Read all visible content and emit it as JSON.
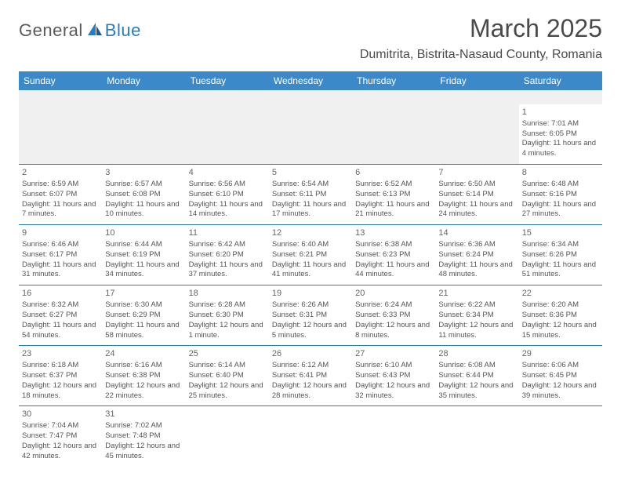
{
  "logo": {
    "part1": "General",
    "part2": "Blue"
  },
  "title": "March 2025",
  "location": "Dumitrita, Bistrita-Nasaud County, Romania",
  "colors": {
    "header_bg": "#3b89c9",
    "header_text": "#ffffff",
    "border": "#2b7bbf",
    "text": "#555555",
    "logo_gray": "#5a5a5a",
    "logo_blue": "#2b7bbf"
  },
  "weekdays": [
    "Sunday",
    "Monday",
    "Tuesday",
    "Wednesday",
    "Thursday",
    "Friday",
    "Saturday"
  ],
  "weeks": [
    [
      null,
      null,
      null,
      null,
      null,
      null,
      {
        "n": "1",
        "sr": "Sunrise: 7:01 AM",
        "ss": "Sunset: 6:05 PM",
        "dl": "Daylight: 11 hours and 4 minutes."
      }
    ],
    [
      {
        "n": "2",
        "sr": "Sunrise: 6:59 AM",
        "ss": "Sunset: 6:07 PM",
        "dl": "Daylight: 11 hours and 7 minutes."
      },
      {
        "n": "3",
        "sr": "Sunrise: 6:57 AM",
        "ss": "Sunset: 6:08 PM",
        "dl": "Daylight: 11 hours and 10 minutes."
      },
      {
        "n": "4",
        "sr": "Sunrise: 6:56 AM",
        "ss": "Sunset: 6:10 PM",
        "dl": "Daylight: 11 hours and 14 minutes."
      },
      {
        "n": "5",
        "sr": "Sunrise: 6:54 AM",
        "ss": "Sunset: 6:11 PM",
        "dl": "Daylight: 11 hours and 17 minutes."
      },
      {
        "n": "6",
        "sr": "Sunrise: 6:52 AM",
        "ss": "Sunset: 6:13 PM",
        "dl": "Daylight: 11 hours and 21 minutes."
      },
      {
        "n": "7",
        "sr": "Sunrise: 6:50 AM",
        "ss": "Sunset: 6:14 PM",
        "dl": "Daylight: 11 hours and 24 minutes."
      },
      {
        "n": "8",
        "sr": "Sunrise: 6:48 AM",
        "ss": "Sunset: 6:16 PM",
        "dl": "Daylight: 11 hours and 27 minutes."
      }
    ],
    [
      {
        "n": "9",
        "sr": "Sunrise: 6:46 AM",
        "ss": "Sunset: 6:17 PM",
        "dl": "Daylight: 11 hours and 31 minutes."
      },
      {
        "n": "10",
        "sr": "Sunrise: 6:44 AM",
        "ss": "Sunset: 6:19 PM",
        "dl": "Daylight: 11 hours and 34 minutes."
      },
      {
        "n": "11",
        "sr": "Sunrise: 6:42 AM",
        "ss": "Sunset: 6:20 PM",
        "dl": "Daylight: 11 hours and 37 minutes."
      },
      {
        "n": "12",
        "sr": "Sunrise: 6:40 AM",
        "ss": "Sunset: 6:21 PM",
        "dl": "Daylight: 11 hours and 41 minutes."
      },
      {
        "n": "13",
        "sr": "Sunrise: 6:38 AM",
        "ss": "Sunset: 6:23 PM",
        "dl": "Daylight: 11 hours and 44 minutes."
      },
      {
        "n": "14",
        "sr": "Sunrise: 6:36 AM",
        "ss": "Sunset: 6:24 PM",
        "dl": "Daylight: 11 hours and 48 minutes."
      },
      {
        "n": "15",
        "sr": "Sunrise: 6:34 AM",
        "ss": "Sunset: 6:26 PM",
        "dl": "Daylight: 11 hours and 51 minutes."
      }
    ],
    [
      {
        "n": "16",
        "sr": "Sunrise: 6:32 AM",
        "ss": "Sunset: 6:27 PM",
        "dl": "Daylight: 11 hours and 54 minutes."
      },
      {
        "n": "17",
        "sr": "Sunrise: 6:30 AM",
        "ss": "Sunset: 6:29 PM",
        "dl": "Daylight: 11 hours and 58 minutes."
      },
      {
        "n": "18",
        "sr": "Sunrise: 6:28 AM",
        "ss": "Sunset: 6:30 PM",
        "dl": "Daylight: 12 hours and 1 minute."
      },
      {
        "n": "19",
        "sr": "Sunrise: 6:26 AM",
        "ss": "Sunset: 6:31 PM",
        "dl": "Daylight: 12 hours and 5 minutes."
      },
      {
        "n": "20",
        "sr": "Sunrise: 6:24 AM",
        "ss": "Sunset: 6:33 PM",
        "dl": "Daylight: 12 hours and 8 minutes."
      },
      {
        "n": "21",
        "sr": "Sunrise: 6:22 AM",
        "ss": "Sunset: 6:34 PM",
        "dl": "Daylight: 12 hours and 11 minutes."
      },
      {
        "n": "22",
        "sr": "Sunrise: 6:20 AM",
        "ss": "Sunset: 6:36 PM",
        "dl": "Daylight: 12 hours and 15 minutes."
      }
    ],
    [
      {
        "n": "23",
        "sr": "Sunrise: 6:18 AM",
        "ss": "Sunset: 6:37 PM",
        "dl": "Daylight: 12 hours and 18 minutes."
      },
      {
        "n": "24",
        "sr": "Sunrise: 6:16 AM",
        "ss": "Sunset: 6:38 PM",
        "dl": "Daylight: 12 hours and 22 minutes."
      },
      {
        "n": "25",
        "sr": "Sunrise: 6:14 AM",
        "ss": "Sunset: 6:40 PM",
        "dl": "Daylight: 12 hours and 25 minutes."
      },
      {
        "n": "26",
        "sr": "Sunrise: 6:12 AM",
        "ss": "Sunset: 6:41 PM",
        "dl": "Daylight: 12 hours and 28 minutes."
      },
      {
        "n": "27",
        "sr": "Sunrise: 6:10 AM",
        "ss": "Sunset: 6:43 PM",
        "dl": "Daylight: 12 hours and 32 minutes."
      },
      {
        "n": "28",
        "sr": "Sunrise: 6:08 AM",
        "ss": "Sunset: 6:44 PM",
        "dl": "Daylight: 12 hours and 35 minutes."
      },
      {
        "n": "29",
        "sr": "Sunrise: 6:06 AM",
        "ss": "Sunset: 6:45 PM",
        "dl": "Daylight: 12 hours and 39 minutes."
      }
    ],
    [
      {
        "n": "30",
        "sr": "Sunrise: 7:04 AM",
        "ss": "Sunset: 7:47 PM",
        "dl": "Daylight: 12 hours and 42 minutes."
      },
      {
        "n": "31",
        "sr": "Sunrise: 7:02 AM",
        "ss": "Sunset: 7:48 PM",
        "dl": "Daylight: 12 hours and 45 minutes."
      },
      null,
      null,
      null,
      null,
      null
    ]
  ]
}
